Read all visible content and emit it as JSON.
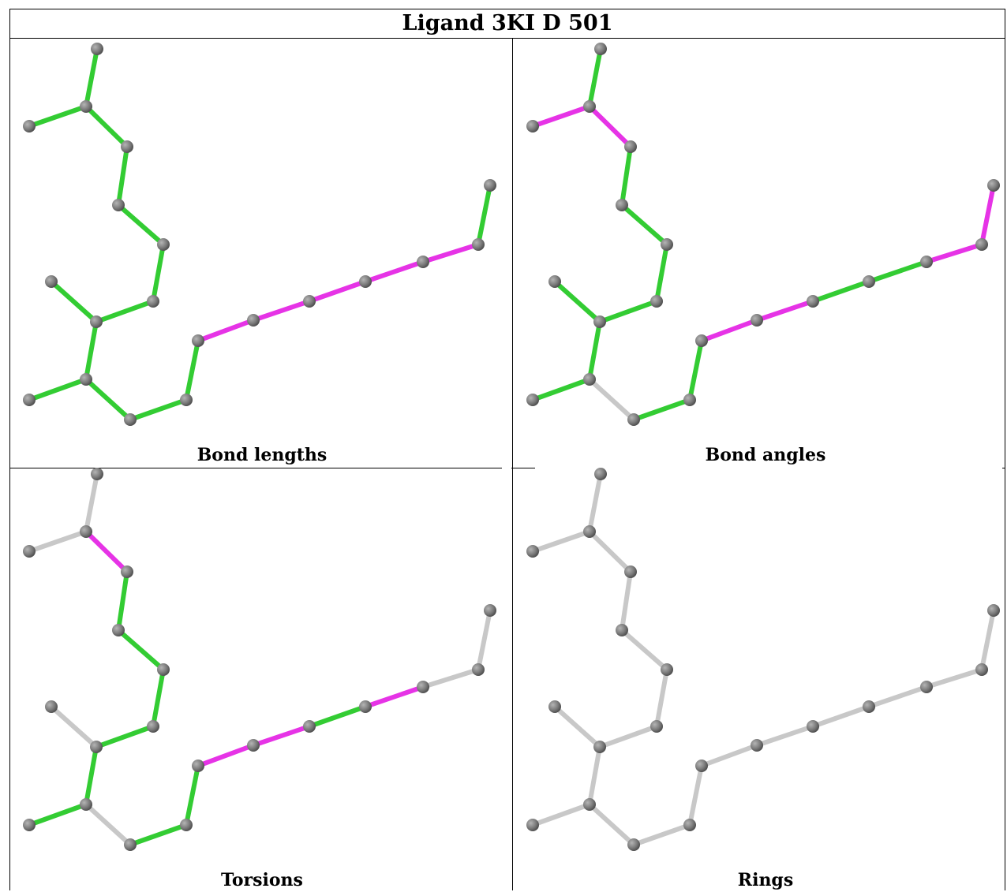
{
  "title": "Ligand 3KI D 501",
  "panels": [
    {
      "caption": "Bond lengths"
    },
    {
      "caption": "Bond angles"
    },
    {
      "caption": "Torsions"
    },
    {
      "caption": "Rings"
    }
  ],
  "colors": {
    "green": "#33cc33",
    "magenta": "#e633e6",
    "gray_bond": "#c8c8c8",
    "atom": "#7a7a7a"
  },
  "bond_colors": [
    [
      "green",
      "green",
      "green",
      "green",
      "green",
      "green",
      "green",
      "green",
      "green",
      "green",
      "green",
      "green",
      "green",
      "magenta",
      "magenta",
      "magenta",
      "magenta",
      "magenta",
      "green"
    ],
    [
      "green",
      "magenta",
      "magenta",
      "green",
      "green",
      "green",
      "green",
      "green",
      "green",
      "green",
      "gray",
      "green",
      "green",
      "magenta",
      "magenta",
      "green",
      "green",
      "magenta",
      "magenta"
    ],
    [
      "gray",
      "gray",
      "magenta",
      "green",
      "green",
      "green",
      "green",
      "gray",
      "green",
      "green",
      "gray",
      "green",
      "green",
      "magenta",
      "magenta",
      "green",
      "magenta",
      "gray",
      "gray"
    ],
    [
      "gray",
      "gray",
      "gray",
      "gray",
      "gray",
      "gray",
      "gray",
      "gray",
      "gray",
      "gray",
      "gray",
      "gray",
      "gray",
      "gray",
      "gray",
      "gray",
      "gray",
      "gray",
      "gray"
    ]
  ]
}
